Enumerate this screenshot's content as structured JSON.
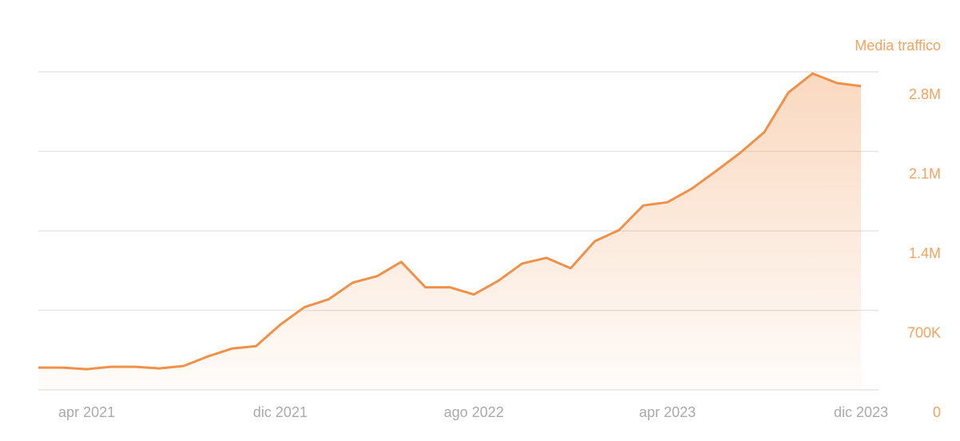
{
  "chart_data": {
    "type": "area",
    "y_axis_title": "Media traffico",
    "x": [
      "2021-02",
      "2021-03",
      "2021-04",
      "2021-05",
      "2021-06",
      "2021-07",
      "2021-08",
      "2021-09",
      "2021-10",
      "2021-11",
      "2021-12",
      "2022-01",
      "2022-02",
      "2022-03",
      "2022-04",
      "2022-05",
      "2022-06",
      "2022-07",
      "2022-08",
      "2022-09",
      "2022-10",
      "2022-11",
      "2022-12",
      "2023-01",
      "2023-02",
      "2023-03",
      "2023-04",
      "2023-05",
      "2023-06",
      "2023-07",
      "2023-08",
      "2023-09",
      "2023-10",
      "2023-11",
      "2023-12"
    ],
    "values": [
      196000,
      196000,
      182000,
      203000,
      203000,
      189000,
      210000,
      294000,
      364000,
      385000,
      574000,
      728000,
      798000,
      945000,
      1001000,
      1127000,
      903000,
      903000,
      840000,
      959000,
      1113000,
      1162000,
      1071000,
      1309000,
      1407000,
      1624000,
      1652000,
      1771000,
      1925000,
      2086000,
      2268000,
      2618000,
      2786000,
      2702000,
      2674000
    ],
    "color": "#f0914a",
    "xlim": [
      "2021-02",
      "2023-12"
    ],
    "xticks": [
      {
        "value": "2021-04",
        "label": "apr 2021"
      },
      {
        "value": "2021-12",
        "label": "dic 2021"
      },
      {
        "value": "2022-08",
        "label": "ago 2022"
      },
      {
        "value": "2023-04",
        "label": "apr 2023"
      },
      {
        "value": "2023-12",
        "label": "dic 2023"
      }
    ],
    "ylim": [
      0,
      2800000
    ],
    "yticks": [
      0,
      {
        "value": 700000,
        "label": "700K"
      },
      {
        "value": 1400000,
        "label": "1.4M"
      },
      {
        "value": 2100000,
        "label": "2.1M"
      },
      {
        "value": 2800000,
        "label": "2.8M"
      }
    ],
    "y_axis_side": "right",
    "grid": true
  }
}
